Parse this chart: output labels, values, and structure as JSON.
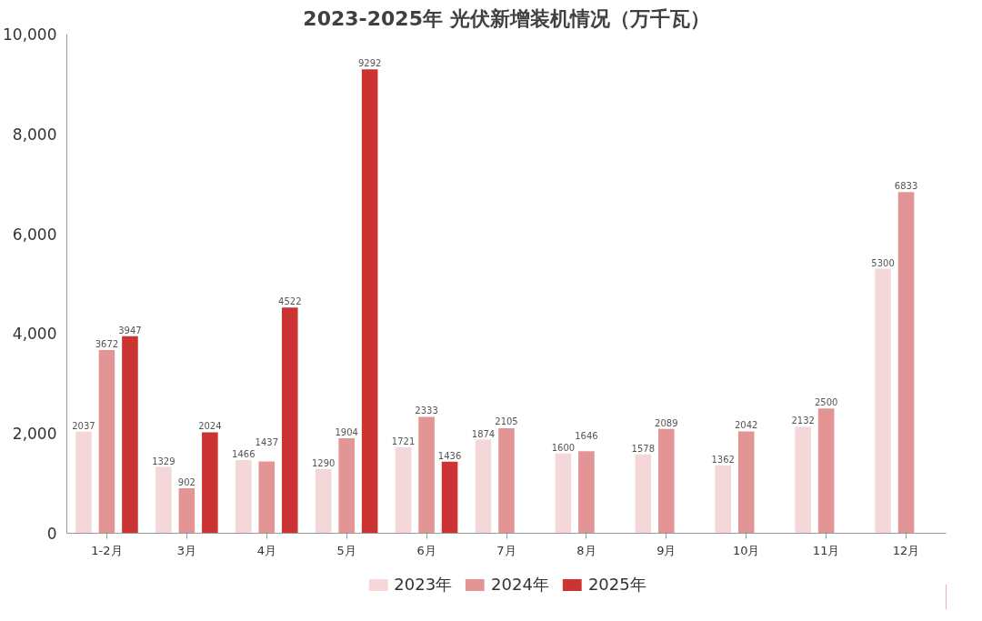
{
  "chart_data": {
    "type": "bar",
    "title": "2023-2025年 光伏新增装机情况（万千瓦）",
    "categories": [
      "1-2月",
      "3月",
      "4月",
      "5月",
      "6月",
      "7月",
      "8月",
      "9月",
      "10月",
      "11月",
      "12月"
    ],
    "series": [
      {
        "name": "2023年",
        "color": "#f4d7d8",
        "values": [
          2037,
          1329,
          1466,
          1290,
          1721,
          1874,
          1600,
          1578,
          1362,
          2132,
          5300
        ]
      },
      {
        "name": "2024年",
        "color": "#e39494",
        "values": [
          3672,
          902,
          1437,
          1904,
          2333,
          2105,
          1646,
          2089,
          2042,
          2500,
          6833
        ]
      },
      {
        "name": "2025年",
        "color": "#cc3333",
        "values": [
          3947,
          2024,
          4522,
          9292,
          1436,
          null,
          null,
          null,
          null,
          null,
          null
        ]
      }
    ],
    "ylim": [
      0,
      10000
    ],
    "yticks": [
      0,
      {
        "value": 2000,
        "label": "2,000"
      },
      {
        "value": 4000,
        "label": "4,000"
      },
      {
        "value": 6000,
        "label": "6,000"
      },
      {
        "value": 8000,
        "label": "8,000"
      },
      {
        "value": 10000,
        "label": "10,000"
      }
    ],
    "data_labels": true,
    "legend": "bottom",
    "grid": false
  }
}
